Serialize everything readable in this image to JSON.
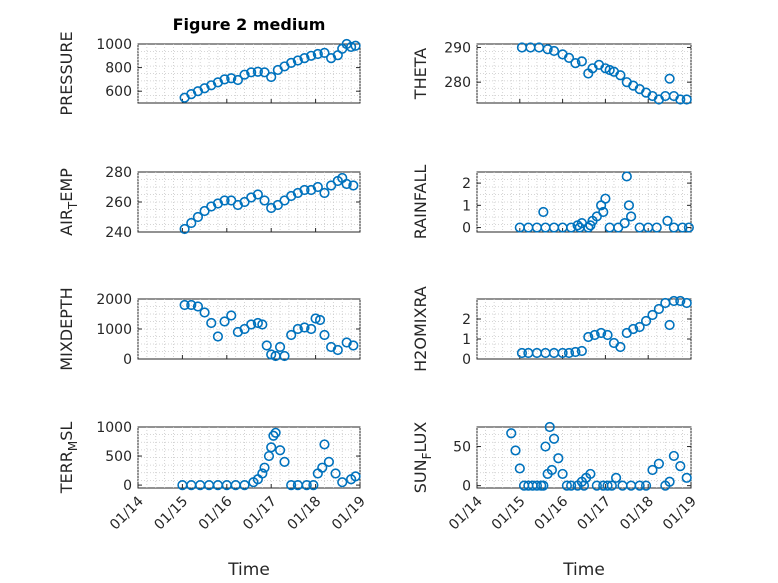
{
  "figure": {
    "title": "Figure 2 medium",
    "colors": {
      "marker": "#0072BD",
      "axis": "#262626",
      "grid": "#c8c8c8"
    }
  },
  "chart_data": [
    {
      "type": "scatter",
      "panel": "left-1",
      "title": "Figure 2 medium",
      "ylabel": "PRESSURE",
      "ylim": [
        500,
        1000
      ],
      "yticks": [
        600,
        800,
        1000
      ],
      "xlim": [
        0,
        5
      ],
      "xticks": [],
      "x": [
        1.05,
        1.2,
        1.35,
        1.5,
        1.65,
        1.8,
        1.95,
        2.1,
        2.25,
        2.4,
        2.55,
        2.7,
        2.85,
        3.0,
        3.15,
        3.3,
        3.45,
        3.6,
        3.75,
        3.9,
        4.05,
        4.2,
        4.35,
        4.5,
        4.6,
        4.7,
        4.8,
        4.9
      ],
      "y": [
        545,
        575,
        600,
        625,
        650,
        675,
        700,
        710,
        695,
        740,
        760,
        765,
        760,
        720,
        780,
        810,
        840,
        860,
        880,
        900,
        915,
        925,
        880,
        905,
        960,
        1000,
        975,
        985
      ]
    },
    {
      "type": "scatter",
      "panel": "right-1",
      "ylabel": "THETA",
      "ylim": [
        274,
        291
      ],
      "yticks": [
        280,
        290
      ],
      "xlim": [
        0,
        5
      ],
      "xticks": [],
      "x": [
        1.05,
        1.25,
        1.45,
        1.65,
        1.8,
        2.0,
        2.15,
        2.3,
        2.45,
        2.6,
        2.7,
        2.85,
        3.0,
        3.1,
        3.2,
        3.35,
        3.5,
        3.65,
        3.8,
        3.95,
        4.1,
        4.25,
        4.4,
        4.5,
        4.6,
        4.75,
        4.9
      ],
      "y": [
        290,
        290,
        290,
        289.5,
        289,
        288,
        287,
        285.5,
        286,
        282.5,
        284,
        285,
        284,
        283.5,
        283,
        282,
        280,
        279,
        278,
        277,
        276,
        275,
        276,
        281,
        276,
        275,
        275
      ]
    },
    {
      "type": "scatter",
      "panel": "left-2",
      "ylabel": "AIR_TEMP",
      "ylim": [
        240,
        280
      ],
      "yticks": [
        240,
        260,
        280
      ],
      "xlim": [
        0,
        5
      ],
      "xticks": [],
      "x": [
        1.05,
        1.2,
        1.35,
        1.5,
        1.65,
        1.8,
        1.95,
        2.1,
        2.25,
        2.4,
        2.55,
        2.7,
        2.85,
        3.0,
        3.15,
        3.3,
        3.45,
        3.6,
        3.75,
        3.9,
        4.05,
        4.2,
        4.35,
        4.5,
        4.6,
        4.7,
        4.85
      ],
      "y": [
        242,
        246,
        250,
        254,
        257,
        259,
        261,
        261,
        258,
        260,
        263,
        265,
        261,
        256,
        258,
        261,
        264,
        266,
        268,
        268,
        270,
        266,
        271,
        274,
        276,
        272,
        271
      ]
    },
    {
      "type": "scatter",
      "panel": "right-2",
      "ylabel": "RAINFALL",
      "ylim": [
        -0.2,
        2.5
      ],
      "yticks": [
        0,
        1,
        2
      ],
      "xlim": [
        0,
        5
      ],
      "xticks": [],
      "x": [
        1.0,
        1.2,
        1.4,
        1.6,
        1.8,
        2.0,
        2.2,
        2.4,
        2.6,
        2.7,
        2.8,
        2.9,
        3.0,
        3.1,
        3.3,
        3.45,
        3.5,
        3.55,
        3.6,
        3.8,
        4.0,
        4.2,
        4.45,
        4.6,
        4.8,
        4.95,
        1.55,
        2.35,
        2.45,
        2.65,
        2.95
      ],
      "y": [
        0,
        0,
        0,
        0,
        0,
        0,
        0,
        0,
        0,
        0.3,
        0.5,
        1.0,
        1.3,
        0,
        0,
        0.2,
        2.3,
        1.0,
        0.5,
        0,
        0,
        0,
        0.3,
        0,
        0,
        0,
        0.7,
        0.1,
        0.2,
        0.1,
        0.7
      ]
    },
    {
      "type": "scatter",
      "panel": "left-3",
      "ylabel": "MIXDEPTH",
      "ylim": [
        0,
        2000
      ],
      "yticks": [
        0,
        1000,
        2000
      ],
      "xlim": [
        0,
        5
      ],
      "xticks": [],
      "x": [
        1.05,
        1.2,
        1.35,
        1.5,
        1.65,
        1.8,
        1.95,
        2.1,
        2.25,
        2.4,
        2.55,
        2.7,
        2.8,
        2.9,
        3.0,
        3.1,
        3.2,
        3.3,
        3.45,
        3.6,
        3.75,
        3.9,
        4.0,
        4.1,
        4.2,
        4.35,
        4.5,
        4.7,
        4.85
      ],
      "y": [
        1800,
        1800,
        1750,
        1550,
        1200,
        750,
        1250,
        1450,
        900,
        1000,
        1150,
        1200,
        1150,
        450,
        150,
        100,
        400,
        100,
        800,
        1000,
        1050,
        1000,
        1350,
        1300,
        800,
        400,
        300,
        550,
        450
      ]
    },
    {
      "type": "scatter",
      "panel": "right-3",
      "ylabel": "H2OMIXRA",
      "ylim": [
        0,
        3
      ],
      "yticks": [
        0,
        1,
        2
      ],
      "xlim": [
        0,
        5
      ],
      "xticks": [],
      "x": [
        1.05,
        1.2,
        1.4,
        1.6,
        1.8,
        2.0,
        2.15,
        2.3,
        2.45,
        2.6,
        2.75,
        2.9,
        3.05,
        3.2,
        3.35,
        3.5,
        3.65,
        3.8,
        3.95,
        4.1,
        4.25,
        4.4,
        4.5,
        4.6,
        4.75,
        4.9
      ],
      "y": [
        0.3,
        0.3,
        0.3,
        0.3,
        0.3,
        0.3,
        0.3,
        0.35,
        0.4,
        1.1,
        1.2,
        1.3,
        1.2,
        0.8,
        0.6,
        1.3,
        1.5,
        1.6,
        1.9,
        2.2,
        2.5,
        2.8,
        1.7,
        2.9,
        2.9,
        2.8
      ]
    },
    {
      "type": "scatter",
      "panel": "left-4",
      "ylabel": "TERR_MSL",
      "ylim": [
        -50,
        1000
      ],
      "yticks": [
        0,
        500,
        1000
      ],
      "xlim": [
        0,
        5
      ],
      "xticks": [
        "01/14",
        "01/15",
        "01/16",
        "01/17",
        "01/18",
        "01/19"
      ],
      "xlabel": "Time",
      "x": [
        1.0,
        1.2,
        1.4,
        1.6,
        1.8,
        2.0,
        2.2,
        2.4,
        2.6,
        2.7,
        2.8,
        2.85,
        2.95,
        3.0,
        3.05,
        3.1,
        3.2,
        3.3,
        3.45,
        3.6,
        3.8,
        3.95,
        4.05,
        4.15,
        4.2,
        4.3,
        4.45,
        4.6,
        4.8,
        4.9
      ],
      "y": [
        0,
        0,
        0,
        0,
        0,
        0,
        0,
        0,
        50,
        100,
        200,
        300,
        500,
        650,
        850,
        900,
        600,
        400,
        0,
        0,
        0,
        0,
        200,
        300,
        700,
        400,
        200,
        50,
        100,
        150
      ]
    },
    {
      "type": "scatter",
      "panel": "right-4",
      "ylabel": "SUN_FLUX",
      "ylim": [
        -3,
        75
      ],
      "yticks": [
        0,
        50
      ],
      "xlim": [
        0,
        5
      ],
      "xticks": [
        "01/14",
        "01/15",
        "01/16",
        "01/17",
        "01/18",
        "01/19"
      ],
      "xlabel": "Time",
      "x": [
        0.8,
        0.9,
        1.0,
        1.1,
        1.2,
        1.3,
        1.4,
        1.5,
        1.6,
        1.7,
        1.8,
        1.9,
        2.0,
        2.1,
        2.2,
        2.35,
        2.45,
        2.55,
        2.65,
        2.8,
        2.95,
        3.05,
        3.15,
        3.25,
        3.4,
        3.6,
        3.8,
        3.95,
        4.1,
        4.25,
        4.4,
        4.5,
        4.6,
        4.75,
        4.9,
        1.55,
        1.65,
        1.75,
        2.5
      ],
      "y": [
        67,
        45,
        22,
        0,
        0,
        0,
        0,
        0,
        50,
        75,
        60,
        35,
        15,
        0,
        0,
        0,
        5,
        10,
        15,
        0,
        0,
        0,
        0,
        10,
        0,
        0,
        0,
        0,
        20,
        28,
        0,
        5,
        38,
        25,
        10,
        0,
        15,
        20,
        0
      ]
    }
  ]
}
